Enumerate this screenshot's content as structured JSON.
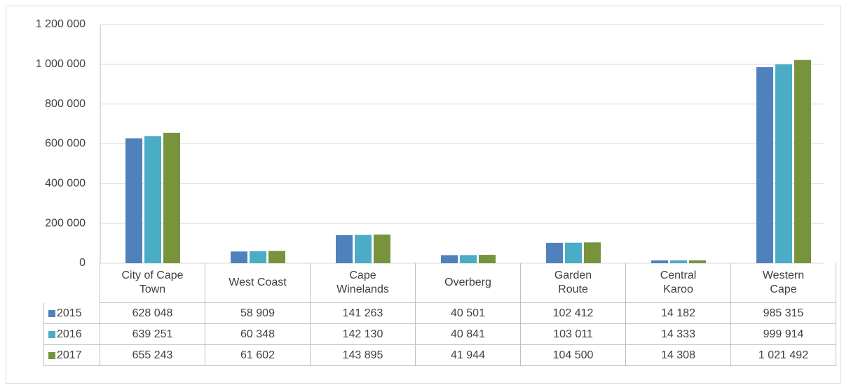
{
  "chart_data": {
    "type": "bar",
    "categories": [
      "City of Cape Town",
      "West Coast",
      "Cape Winelands",
      "Overberg",
      "Garden Route",
      "Central Karoo",
      "Western Cape"
    ],
    "series": [
      {
        "name": "2015",
        "color": "#4f81bd",
        "values": [
          628048,
          58909,
          141263,
          40501,
          102412,
          14182,
          985315
        ],
        "value_labels": [
          "628 048",
          "58 909",
          "141 263",
          "40 501",
          "102 412",
          "14 182",
          "985 315"
        ]
      },
      {
        "name": "2016",
        "color": "#4bacc6",
        "values": [
          639251,
          60348,
          142130,
          40841,
          103011,
          14333,
          999914
        ],
        "value_labels": [
          "639 251",
          "60 348",
          "142 130",
          "40 841",
          "103 011",
          "14 333",
          "999 914"
        ]
      },
      {
        "name": "2017",
        "color": "#77933c",
        "values": [
          655243,
          61602,
          143895,
          41944,
          104500,
          14308,
          1021492
        ],
        "value_labels": [
          "655 243",
          "61 602",
          "143 895",
          "41 944",
          "104 500",
          "14 308",
          "1 021 492"
        ]
      }
    ],
    "ylim": [
      0,
      1200000
    ],
    "yticks": [
      0,
      {
        "value": 200000,
        "label": "200 000"
      },
      {
        "value": 400000,
        "label": "400 000"
      },
      {
        "value": 600000,
        "label": "600 000"
      },
      {
        "value": 800000,
        "label": "800 000"
      },
      {
        "value": 1000000,
        "label": "1 000 000"
      },
      {
        "value": 1200000,
        "label": "1 200 000"
      }
    ],
    "grid": true
  }
}
